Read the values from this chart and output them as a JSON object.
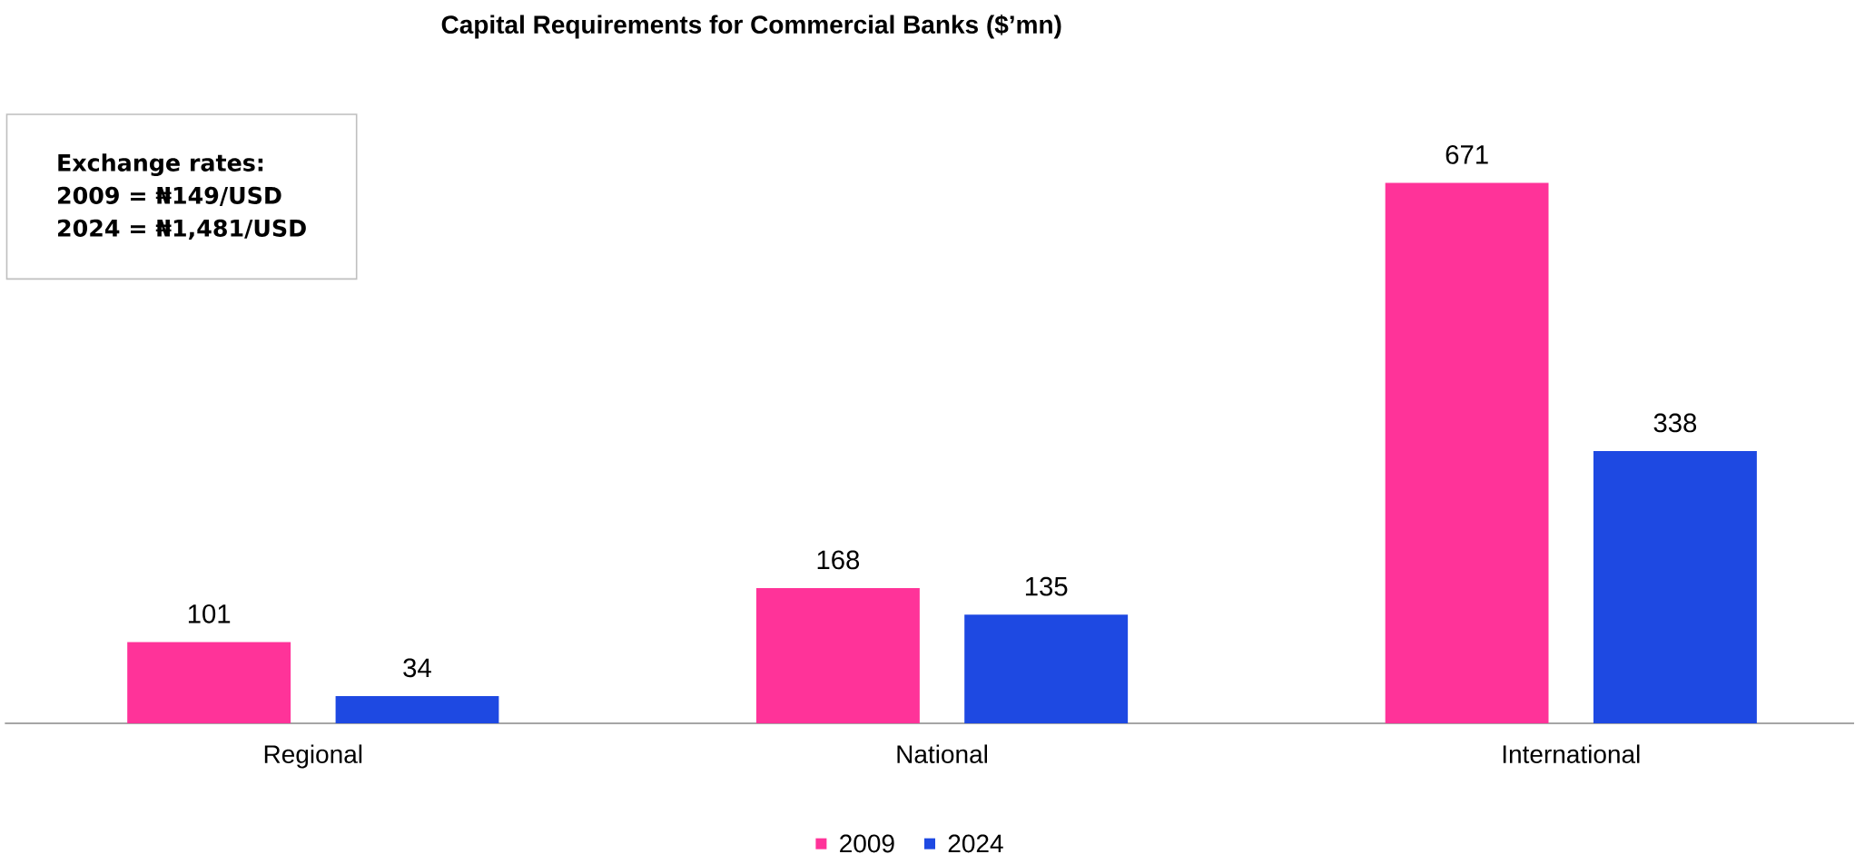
{
  "chart_data": {
    "type": "bar",
    "title": "Capital Requirements for Commercial Banks ($’mn)",
    "categories": [
      "Regional",
      "National",
      "International"
    ],
    "series": [
      {
        "name": "2009",
        "color": "#ff3399",
        "values": [
          101,
          168,
          671
        ]
      },
      {
        "name": "2024",
        "color": "#1e49e2",
        "values": [
          34,
          135,
          338
        ]
      }
    ],
    "annotations": [
      "Exchange rates:",
      "2009 = ₦149/USD",
      "2024 = ₦1,481/USD"
    ],
    "data_labels": true,
    "legend": "bottom"
  }
}
